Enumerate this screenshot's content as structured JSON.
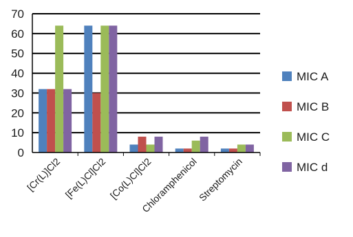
{
  "chart_data": {
    "type": "bar",
    "title": "",
    "xlabel": "",
    "ylabel": "",
    "categories": [
      "[Cr(L)]Cl2",
      "[Fe(L)Cl]Cl2",
      "[Co(L)Cl]Cl2",
      "Chloramphenicol",
      "Streptomycin"
    ],
    "series": [
      {
        "name": "MIC A",
        "values": [
          32,
          64,
          4,
          2,
          2
        ],
        "color": "#4f81bd"
      },
      {
        "name": "MIC B",
        "values": [
          32,
          30,
          8,
          2,
          2
        ],
        "color": "#c0504d"
      },
      {
        "name": "MIC C",
        "values": [
          64,
          64,
          4,
          6,
          4
        ],
        "color": "#9bbb59"
      },
      {
        "name": "MIC d",
        "values": [
          32,
          64,
          8,
          8,
          4
        ],
        "color": "#8064a2"
      }
    ],
    "ylim": [
      0,
      70
    ],
    "yticks": [
      0,
      10,
      20,
      30,
      40,
      50,
      60,
      70
    ],
    "grid": true,
    "legend_position": "right"
  }
}
